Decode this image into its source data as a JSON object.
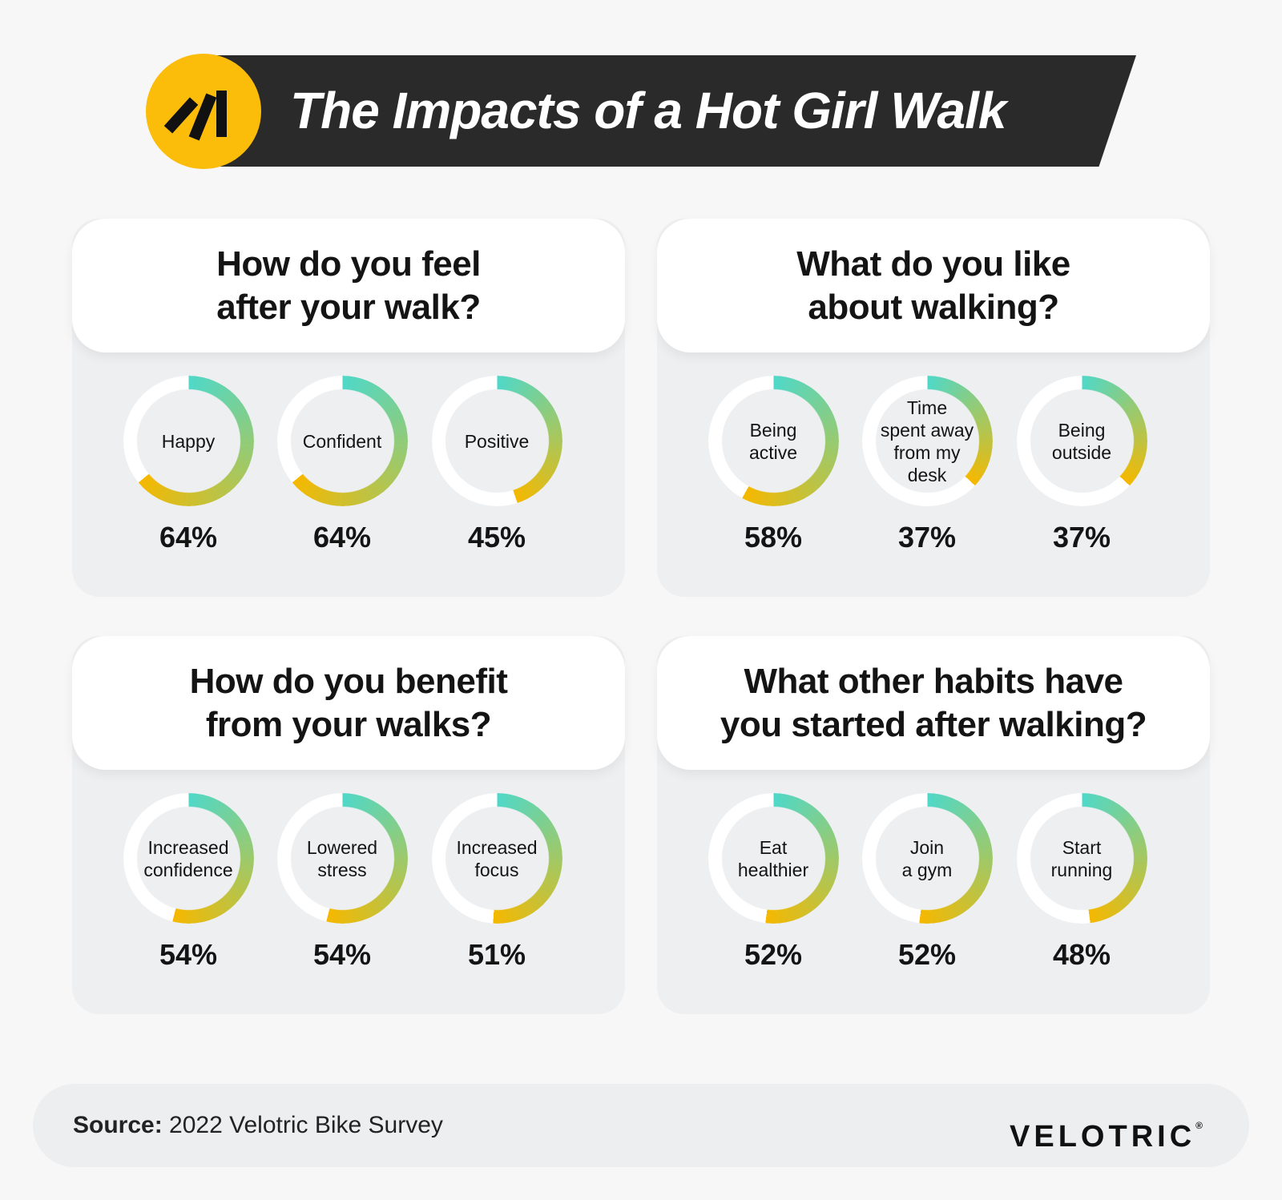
{
  "title": "The Impacts of a Hot Girl Walk",
  "colors": {
    "ring_start": "#4fd8c8",
    "ring_end": "#f5b800",
    "ring_track": "#ffffff",
    "logo": "#fbbc0a",
    "title_bar": "#2a2a2a"
  },
  "chart_data": [
    {
      "type": "donut",
      "title": "How do you feel\nafter your walk?",
      "items": [
        {
          "label": "Happy",
          "value": 64,
          "value_label": "64%"
        },
        {
          "label": "Confident",
          "value": 64,
          "value_label": "64%"
        },
        {
          "label": "Positive",
          "value": 45,
          "value_label": "45%"
        }
      ]
    },
    {
      "type": "donut",
      "title": "What do you like\nabout walking?",
      "items": [
        {
          "label": "Being\nactive",
          "value": 58,
          "value_label": "58%"
        },
        {
          "label": "Time\nspent away\nfrom my\ndesk",
          "value": 37,
          "value_label": "37%"
        },
        {
          "label": "Being\noutside",
          "value": 37,
          "value_label": "37%"
        }
      ]
    },
    {
      "type": "donut",
      "title": "How do you benefit\nfrom your walks?",
      "items": [
        {
          "label": "Increased\nconfidence",
          "value": 54,
          "value_label": "54%"
        },
        {
          "label": "Lowered\nstress",
          "value": 54,
          "value_label": "54%"
        },
        {
          "label": "Increased\nfocus",
          "value": 51,
          "value_label": "51%"
        }
      ]
    },
    {
      "type": "donut",
      "title": "What other habits have\nyou started after walking?",
      "items": [
        {
          "label": "Eat\nhealthier",
          "value": 52,
          "value_label": "52%"
        },
        {
          "label": "Join\na gym",
          "value": 52,
          "value_label": "52%"
        },
        {
          "label": "Start\nrunning",
          "value": 48,
          "value_label": "48%"
        }
      ]
    }
  ],
  "footer": {
    "source_label": "Source:",
    "source_text": " 2022 Velotric Bike Survey",
    "brand": "VELOTRIC",
    "brand_mark": "®"
  }
}
